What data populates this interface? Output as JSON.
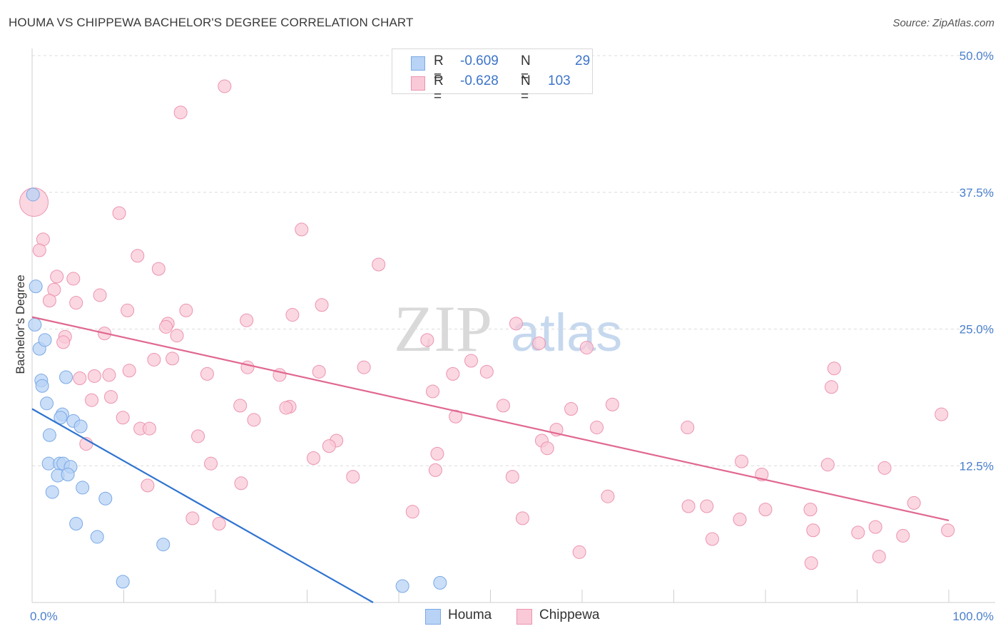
{
  "title": "HOUMA VS CHIPPEWA BACHELOR'S DEGREE CORRELATION CHART",
  "source": "Source: ZipAtlas.com",
  "watermark": {
    "zip": "ZIP",
    "atlas": "atlas"
  },
  "colors": {
    "houma_fill": "#b8d3f5",
    "houma_stroke": "#7aa9e6",
    "houma_line": "#2f74d0",
    "chippewa_fill": "#f9c9d7",
    "chippewa_stroke": "#ec94b0",
    "chippewa_line": "#e0688f",
    "tick_text": "#4a7fcc",
    "grid": "#dcdcdc"
  },
  "legend": {
    "rows": [
      {
        "series": "Houma",
        "r_label": "R =",
        "r_value": "-0.609",
        "n_label": "N =",
        "n_value": "29"
      },
      {
        "series": "Chippewa",
        "r_label": "R =",
        "r_value": "-0.628",
        "n_label": "N =",
        "n_value": "103"
      }
    ]
  },
  "bottom_legend": [
    "Houma",
    "Chippewa"
  ],
  "chart_data": {
    "type": "scatter",
    "title": "HOUMA VS CHIPPEWA BACHELOR'S DEGREE CORRELATION CHART",
    "xlabel": "",
    "ylabel": "Bachelor's Degree",
    "xlim": [
      0,
      100
    ],
    "ylim": [
      0,
      50
    ],
    "x_tick_labels": [
      "0.0%",
      "100.0%"
    ],
    "y_ticks": [
      12.5,
      25.0,
      37.5,
      50.0
    ],
    "y_tick_labels": [
      "12.5%",
      "25.0%",
      "37.5%",
      "50.0%"
    ],
    "grid": true,
    "legend_position": "top-center",
    "series": [
      {
        "name": "Houma",
        "R": -0.609,
        "N": 29,
        "trendline": {
          "x": [
            0,
            37.2
          ],
          "y": [
            17.7,
            0
          ]
        },
        "points": [
          [
            0.1,
            37.3
          ],
          [
            0.4,
            28.9
          ],
          [
            0.3,
            25.4
          ],
          [
            0.8,
            23.2
          ],
          [
            1.4,
            24.0
          ],
          [
            1.0,
            20.3
          ],
          [
            1.1,
            19.8
          ],
          [
            3.7,
            20.6
          ],
          [
            1.6,
            18.2
          ],
          [
            3.3,
            17.2
          ],
          [
            3.1,
            16.9
          ],
          [
            4.5,
            16.6
          ],
          [
            5.3,
            16.1
          ],
          [
            1.9,
            15.3
          ],
          [
            1.8,
            12.7
          ],
          [
            3.0,
            12.7
          ],
          [
            3.4,
            12.7
          ],
          [
            4.2,
            12.4
          ],
          [
            2.8,
            11.6
          ],
          [
            3.9,
            11.7
          ],
          [
            5.5,
            10.5
          ],
          [
            2.2,
            10.1
          ],
          [
            8.0,
            9.5
          ],
          [
            4.8,
            7.2
          ],
          [
            7.1,
            6.0
          ],
          [
            14.3,
            5.3
          ],
          [
            9.9,
            1.9
          ],
          [
            40.4,
            1.5
          ],
          [
            44.5,
            1.8
          ]
        ]
      },
      {
        "name": "Chippewa",
        "R": -0.628,
        "N": 103,
        "trendline": {
          "x": [
            0,
            100
          ],
          "y": [
            26.1,
            7.5
          ]
        },
        "points": [
          [
            0.2,
            36.6
          ],
          [
            21.0,
            47.2
          ],
          [
            16.2,
            44.8
          ],
          [
            9.5,
            35.6
          ],
          [
            29.4,
            34.1
          ],
          [
            1.2,
            33.2
          ],
          [
            0.8,
            32.2
          ],
          [
            11.5,
            31.7
          ],
          [
            13.8,
            30.5
          ],
          [
            37.8,
            30.9
          ],
          [
            2.7,
            29.8
          ],
          [
            4.5,
            29.6
          ],
          [
            2.4,
            28.6
          ],
          [
            7.4,
            28.1
          ],
          [
            1.9,
            27.6
          ],
          [
            4.8,
            27.4
          ],
          [
            10.4,
            26.7
          ],
          [
            16.8,
            26.7
          ],
          [
            23.4,
            25.8
          ],
          [
            28.4,
            26.3
          ],
          [
            31.6,
            27.2
          ],
          [
            52.8,
            25.5
          ],
          [
            14.8,
            25.5
          ],
          [
            14.6,
            25.2
          ],
          [
            7.9,
            24.6
          ],
          [
            15.8,
            24.4
          ],
          [
            3.6,
            24.3
          ],
          [
            3.4,
            23.8
          ],
          [
            43.1,
            24.0
          ],
          [
            55.3,
            23.7
          ],
          [
            60.5,
            23.3
          ],
          [
            13.3,
            22.2
          ],
          [
            15.3,
            22.3
          ],
          [
            47.9,
            22.1
          ],
          [
            23.5,
            21.5
          ],
          [
            36.2,
            21.5
          ],
          [
            10.6,
            21.2
          ],
          [
            31.3,
            21.1
          ],
          [
            49.6,
            21.1
          ],
          [
            19.1,
            20.9
          ],
          [
            6.8,
            20.7
          ],
          [
            8.4,
            20.8
          ],
          [
            45.9,
            20.9
          ],
          [
            27.0,
            20.8
          ],
          [
            5.2,
            20.5
          ],
          [
            87.5,
            21.4
          ],
          [
            87.2,
            19.7
          ],
          [
            43.7,
            19.3
          ],
          [
            8.6,
            18.8
          ],
          [
            6.5,
            18.5
          ],
          [
            22.7,
            18.0
          ],
          [
            28.1,
            17.9
          ],
          [
            27.7,
            17.8
          ],
          [
            51.4,
            18.0
          ],
          [
            58.8,
            17.7
          ],
          [
            63.3,
            18.1
          ],
          [
            46.2,
            17.0
          ],
          [
            9.9,
            16.9
          ],
          [
            24.2,
            16.7
          ],
          [
            99.2,
            17.2
          ],
          [
            11.8,
            15.9
          ],
          [
            12.8,
            15.9
          ],
          [
            61.6,
            16.0
          ],
          [
            71.5,
            16.0
          ],
          [
            57.2,
            15.8
          ],
          [
            18.1,
            15.2
          ],
          [
            33.2,
            14.8
          ],
          [
            32.4,
            14.3
          ],
          [
            55.6,
            14.8
          ],
          [
            56.2,
            14.1
          ],
          [
            5.9,
            14.5
          ],
          [
            44.2,
            13.6
          ],
          [
            30.7,
            13.2
          ],
          [
            19.5,
            12.7
          ],
          [
            77.4,
            12.9
          ],
          [
            86.8,
            12.6
          ],
          [
            93.0,
            12.3
          ],
          [
            44.0,
            12.1
          ],
          [
            35.0,
            11.5
          ],
          [
            52.4,
            11.5
          ],
          [
            79.6,
            11.7
          ],
          [
            12.6,
            10.7
          ],
          [
            22.8,
            10.9
          ],
          [
            62.8,
            9.7
          ],
          [
            71.6,
            8.8
          ],
          [
            73.6,
            8.8
          ],
          [
            80.0,
            8.5
          ],
          [
            84.9,
            8.5
          ],
          [
            96.2,
            9.1
          ],
          [
            41.5,
            8.3
          ],
          [
            17.5,
            7.7
          ],
          [
            20.4,
            7.2
          ],
          [
            53.5,
            7.7
          ],
          [
            77.2,
            7.6
          ],
          [
            85.2,
            6.6
          ],
          [
            95.0,
            6.1
          ],
          [
            92.0,
            6.9
          ],
          [
            90.1,
            6.4
          ],
          [
            99.9,
            6.6
          ],
          [
            74.2,
            5.8
          ],
          [
            59.7,
            4.6
          ],
          [
            92.4,
            4.2
          ],
          [
            85.0,
            3.6
          ]
        ]
      }
    ]
  }
}
